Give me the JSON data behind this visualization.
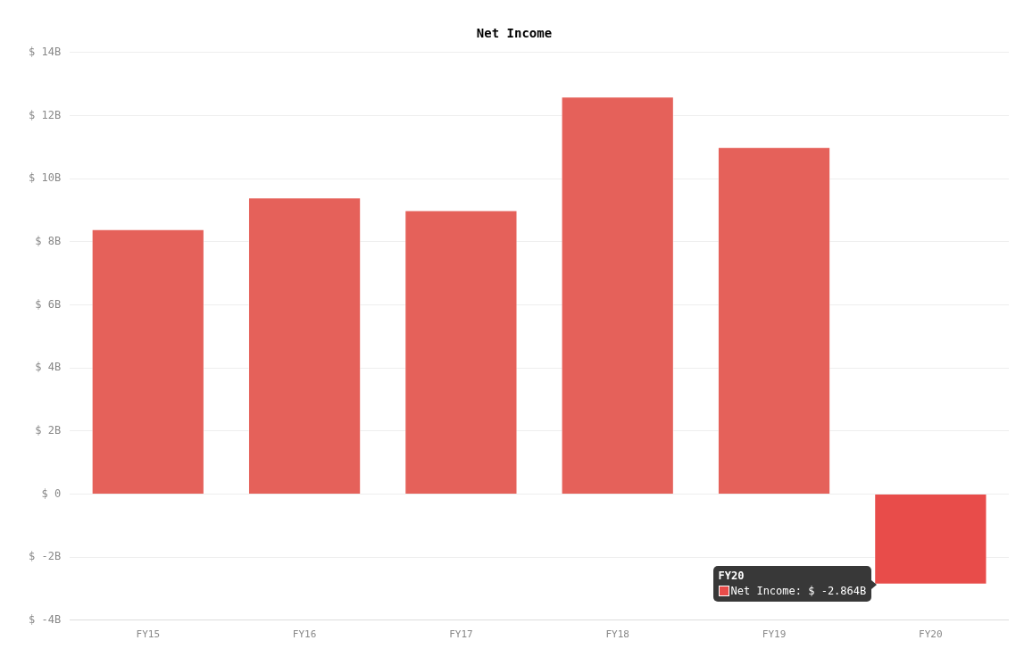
{
  "chart_data": {
    "type": "bar",
    "title": "Net Income",
    "categories": [
      "FY15",
      "FY16",
      "FY17",
      "FY18",
      "FY19",
      "FY20"
    ],
    "series": [
      {
        "colors": [
          "#e5615a",
          "#e5615a",
          "#e5615a",
          "#e5615a",
          "#e5615a",
          "#e84c4a"
        ],
        "values": [
          8.4,
          9.4,
          9.0,
          12.6,
          11.0,
          -2.864
        ],
        "value_labels": [
          null,
          null,
          null,
          null,
          null,
          "Net Income: $ -2.864B"
        ]
      }
    ],
    "ylim": [
      -4,
      14
    ],
    "yticks": [
      {
        "value": -4,
        "label": "$ -4B"
      },
      {
        "value": -2,
        "label": "$ -2B"
      },
      {
        "value": 0,
        "label": "$ 0"
      },
      {
        "value": 2,
        "label": "$ 2B"
      },
      {
        "value": 4,
        "label": "$ 4B"
      },
      {
        "value": 6,
        "label": "$ 6B"
      },
      {
        "value": 8,
        "label": "$ 8B"
      },
      {
        "value": 10,
        "label": "$ 10B"
      },
      {
        "value": 12,
        "label": "$ 12B"
      },
      {
        "value": 14,
        "label": "$ 14B"
      }
    ],
    "grid": "y",
    "legend": false
  }
}
